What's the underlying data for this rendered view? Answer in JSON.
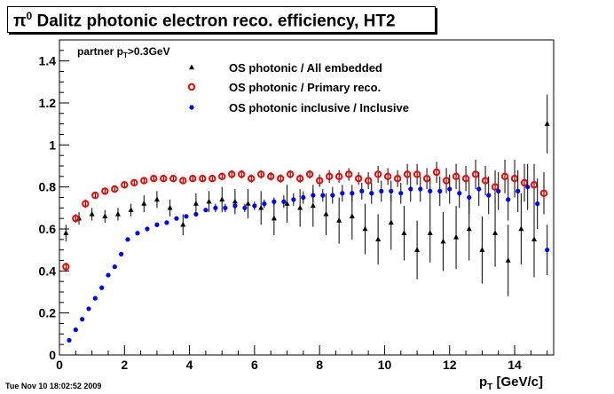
{
  "title": {
    "pi_symbol": "π",
    "pi_superscript": "0",
    "text": " Dalitz photonic electron reco. efficiency, HT2"
  },
  "footer_timestamp": "Tue Nov 10 18:02:52 2009",
  "chart_data": {
    "type": "scatter",
    "annotation": {
      "text_prefix": "partner p",
      "subscript": "T",
      "text_suffix": ">0.3GeV"
    },
    "xlabel": {
      "main": "p",
      "subscript": "T",
      "suffix": " [GeV/c]"
    },
    "ylabel": "",
    "xlim": [
      0,
      15.2
    ],
    "ylim": [
      0,
      1.5
    ],
    "x_ticks": [
      0,
      2,
      4,
      6,
      8,
      10,
      12,
      14
    ],
    "y_ticks": [
      0,
      0.2,
      0.4,
      0.6,
      0.8,
      1,
      1.2,
      1.4
    ],
    "x_tick_labels": [
      "0",
      "2",
      "4",
      "6",
      "8",
      "10",
      "12",
      "14"
    ],
    "y_tick_labels": [
      "0",
      "0.2",
      "0.4",
      "0.6",
      "0.8",
      "1",
      "1.2",
      "1.4"
    ],
    "grid": false,
    "legend_position": "top-center",
    "series": [
      {
        "name": "OS photonic / All embedded",
        "marker": "triangle",
        "color": "#000000",
        "x": [
          0.2,
          0.6,
          1.0,
          1.4,
          1.8,
          2.2,
          2.6,
          3.0,
          3.4,
          3.8,
          4.2,
          4.6,
          5.0,
          5.4,
          5.8,
          6.2,
          6.6,
          7.0,
          7.4,
          7.8,
          8.2,
          8.6,
          9.0,
          9.4,
          9.8,
          10.2,
          10.6,
          11.0,
          11.4,
          11.8,
          12.2,
          12.6,
          13.0,
          13.4,
          13.8,
          14.2,
          14.6,
          15.0
        ],
        "y": [
          0.58,
          0.65,
          0.67,
          0.66,
          0.67,
          0.69,
          0.72,
          0.74,
          0.7,
          0.62,
          0.72,
          0.73,
          0.74,
          0.73,
          0.72,
          0.7,
          0.65,
          0.72,
          0.7,
          0.71,
          0.67,
          0.64,
          0.66,
          0.6,
          0.55,
          0.63,
          0.58,
          0.5,
          0.58,
          0.54,
          0.56,
          0.6,
          0.5,
          0.58,
          0.45,
          0.6,
          0.55,
          1.1
        ],
        "y_err": [
          0.04,
          0.03,
          0.03,
          0.03,
          0.03,
          0.03,
          0.04,
          0.04,
          0.04,
          0.05,
          0.05,
          0.05,
          0.06,
          0.06,
          0.07,
          0.08,
          0.08,
          0.09,
          0.09,
          0.1,
          0.1,
          0.11,
          0.11,
          0.12,
          0.12,
          0.13,
          0.13,
          0.14,
          0.14,
          0.14,
          0.15,
          0.15,
          0.16,
          0.16,
          0.17,
          0.17,
          0.18,
          0.14
        ]
      },
      {
        "name": "OS photonic / Primary reco.",
        "marker": "open-circle",
        "color": "#ff0000",
        "x": [
          0.2,
          0.5,
          0.8,
          1.1,
          1.4,
          1.7,
          2.0,
          2.3,
          2.6,
          2.9,
          3.2,
          3.5,
          3.8,
          4.1,
          4.4,
          4.7,
          5.0,
          5.3,
          5.6,
          5.9,
          6.2,
          6.5,
          6.8,
          7.1,
          7.4,
          7.7,
          8.0,
          8.3,
          8.6,
          8.9,
          9.2,
          9.5,
          9.8,
          10.1,
          10.4,
          10.7,
          11.0,
          11.3,
          11.6,
          11.9,
          12.2,
          12.5,
          12.8,
          13.1,
          13.4,
          13.7,
          14.0,
          14.3,
          14.6,
          14.9
        ],
        "y": [
          0.42,
          0.65,
          0.72,
          0.76,
          0.78,
          0.79,
          0.81,
          0.82,
          0.83,
          0.84,
          0.84,
          0.84,
          0.83,
          0.84,
          0.84,
          0.84,
          0.85,
          0.86,
          0.86,
          0.84,
          0.86,
          0.85,
          0.84,
          0.86,
          0.84,
          0.86,
          0.83,
          0.85,
          0.85,
          0.86,
          0.84,
          0.83,
          0.86,
          0.85,
          0.84,
          0.86,
          0.86,
          0.84,
          0.87,
          0.83,
          0.85,
          0.84,
          0.86,
          0.83,
          0.8,
          0.85,
          0.84,
          0.82,
          0.81,
          0.77
        ],
        "y_err": [
          0.02,
          0.02,
          0.02,
          0.01,
          0.01,
          0.01,
          0.01,
          0.01,
          0.01,
          0.01,
          0.01,
          0.01,
          0.01,
          0.01,
          0.01,
          0.01,
          0.01,
          0.02,
          0.02,
          0.02,
          0.02,
          0.02,
          0.02,
          0.02,
          0.02,
          0.02,
          0.03,
          0.03,
          0.03,
          0.03,
          0.03,
          0.04,
          0.04,
          0.04,
          0.04,
          0.05,
          0.05,
          0.05,
          0.05,
          0.06,
          0.06,
          0.06,
          0.07,
          0.07,
          0.08,
          0.08,
          0.09,
          0.09,
          0.1,
          0.1
        ]
      },
      {
        "name": "OS photonic inclusive / Inclusive",
        "marker": "filled-circle",
        "color": "#0000ff",
        "x": [
          0.3,
          0.5,
          0.7,
          0.9,
          1.1,
          1.3,
          1.5,
          1.7,
          1.9,
          2.1,
          2.4,
          2.7,
          3.0,
          3.3,
          3.6,
          3.9,
          4.2,
          4.5,
          4.8,
          5.1,
          5.4,
          5.7,
          6.0,
          6.3,
          6.6,
          6.9,
          7.2,
          7.5,
          7.8,
          8.1,
          8.4,
          8.7,
          9.0,
          9.3,
          9.6,
          9.9,
          10.2,
          10.5,
          10.8,
          11.1,
          11.4,
          11.7,
          12.0,
          12.3,
          12.6,
          12.9,
          13.2,
          13.5,
          13.8,
          14.1,
          14.4,
          14.7,
          15.0
        ],
        "y": [
          0.07,
          0.12,
          0.17,
          0.22,
          0.27,
          0.32,
          0.38,
          0.42,
          0.48,
          0.55,
          0.58,
          0.6,
          0.62,
          0.63,
          0.65,
          0.66,
          0.67,
          0.69,
          0.7,
          0.7,
          0.71,
          0.7,
          0.71,
          0.72,
          0.73,
          0.73,
          0.74,
          0.75,
          0.76,
          0.76,
          0.76,
          0.77,
          0.77,
          0.78,
          0.77,
          0.78,
          0.78,
          0.77,
          0.79,
          0.79,
          0.78,
          0.78,
          0.79,
          0.77,
          0.75,
          0.79,
          0.76,
          0.78,
          0.74,
          0.78,
          0.8,
          0.72,
          0.5
        ],
        "y_err": [
          0.01,
          0.01,
          0.01,
          0.01,
          0.01,
          0.01,
          0.01,
          0.01,
          0.01,
          0.01,
          0.01,
          0.01,
          0.01,
          0.01,
          0.01,
          0.01,
          0.01,
          0.01,
          0.02,
          0.02,
          0.02,
          0.02,
          0.02,
          0.02,
          0.02,
          0.03,
          0.03,
          0.03,
          0.03,
          0.03,
          0.04,
          0.04,
          0.04,
          0.04,
          0.05,
          0.05,
          0.05,
          0.05,
          0.06,
          0.06,
          0.06,
          0.07,
          0.07,
          0.07,
          0.08,
          0.08,
          0.09,
          0.09,
          0.1,
          0.1,
          0.11,
          0.12,
          0.12
        ]
      }
    ]
  }
}
